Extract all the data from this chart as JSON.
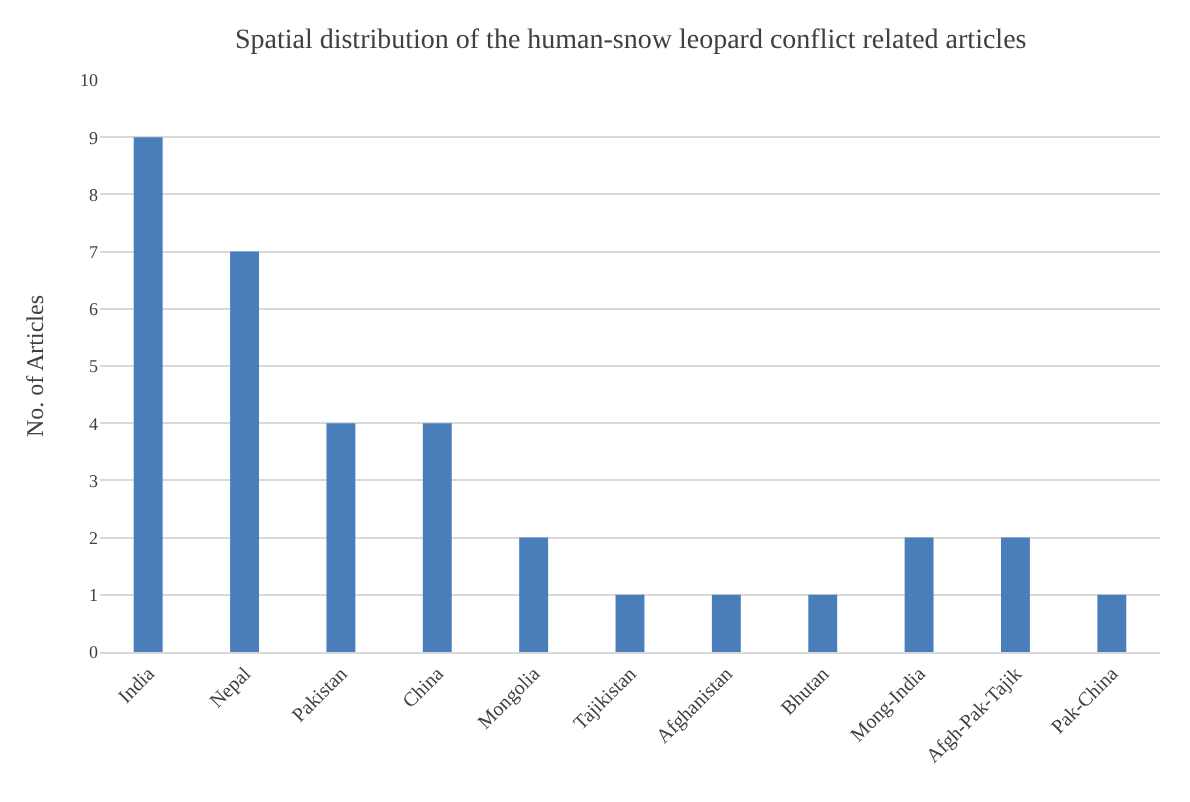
{
  "chart_data": {
    "type": "bar",
    "title": "Spatial distribution of the human-snow leopard conflict related articles",
    "ylabel": "No. of Articles",
    "categories": [
      "India",
      "Nepal",
      "Pakistan",
      "China",
      "Mongolia",
      "Tajikistan",
      "Afghanistan",
      "Bhutan",
      "Mong-India",
      "Afgh-Pak-Tajik",
      "Pak-China"
    ],
    "values": [
      9,
      7,
      4,
      4,
      2,
      1,
      1,
      1,
      2,
      2,
      1
    ],
    "color": "#4a7ebb",
    "ylim": [
      0,
      10
    ],
    "yticks": [
      0,
      1,
      2,
      3,
      4,
      5,
      6,
      7,
      8,
      9,
      10
    ],
    "grid": "y"
  }
}
